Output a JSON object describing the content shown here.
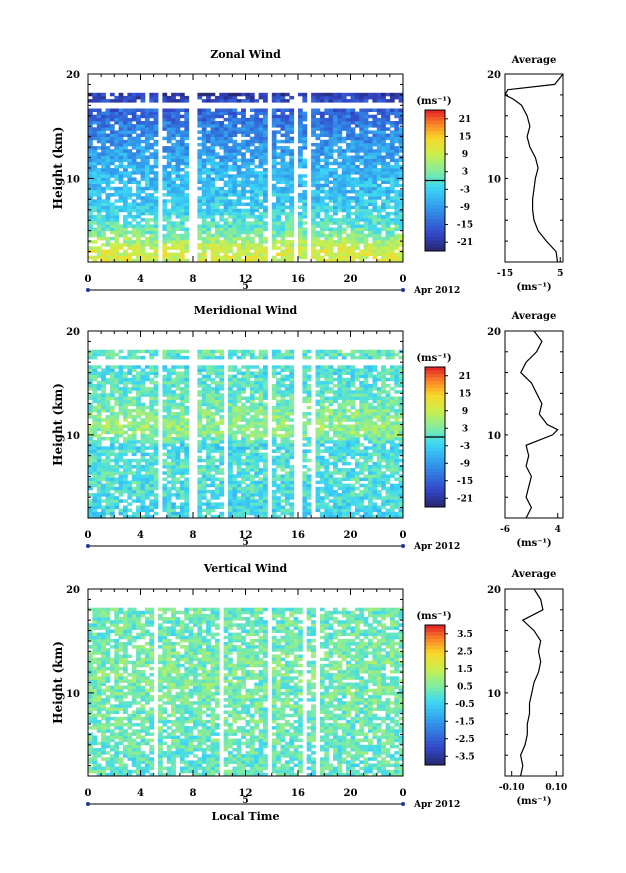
{
  "chart_data": [
    {
      "type": "heatmap",
      "title": "Zonal Wind",
      "ylabel": "Height (km)",
      "unit": "(ms⁻¹)",
      "xlim": [
        0,
        24
      ],
      "ylim": [
        2,
        20
      ],
      "x_ticks": [
        "0",
        "4",
        "8",
        "12",
        "16",
        "20",
        "0"
      ],
      "y_ticks": [
        "20",
        "10"
      ],
      "day_label": "5",
      "date_label": "Apr 2012",
      "colorbar": {
        "min": -24,
        "max": 24,
        "ticks": [
          "21",
          "15",
          "9",
          "3",
          "-3",
          "-9",
          "-15",
          "-21"
        ],
        "zero_marker": true
      },
      "gaps_hours": [
        5.6,
        8.0,
        13.8,
        15.9,
        16.9
      ],
      "profile_by_height": [
        [
          3,
          10
        ],
        [
          5,
          2
        ],
        [
          7,
          -3
        ],
        [
          9,
          -5
        ],
        [
          11,
          -6
        ],
        [
          13,
          -9
        ],
        [
          15,
          -12
        ],
        [
          17,
          -16
        ],
        [
          18,
          -20
        ]
      ],
      "values_scale": 24,
      "average": {
        "title": "Average",
        "xlabel": "(ms⁻¹)",
        "xlim": [
          -15,
          6
        ],
        "x_ticks": [
          "-15",
          "5"
        ],
        "y_ticks": [
          "20",
          "10"
        ],
        "heights": [
          2,
          3,
          4,
          5,
          6,
          7,
          8,
          9,
          10,
          11,
          12,
          13,
          14,
          15,
          16,
          17,
          17.6,
          18,
          18.5,
          19,
          20
        ],
        "values": [
          4,
          3.5,
          0,
          -3,
          -4.5,
          -5,
          -5,
          -4.5,
          -4,
          -3,
          -4,
          -6,
          -7,
          -6,
          -7,
          -9,
          -12,
          -15,
          -14,
          3,
          6
        ]
      }
    },
    {
      "type": "heatmap",
      "title": "Meridional Wind",
      "ylabel": "Height (km)",
      "unit": "(ms⁻¹)",
      "xlim": [
        0,
        24
      ],
      "ylim": [
        2,
        20
      ],
      "x_ticks": [
        "0",
        "4",
        "8",
        "12",
        "16",
        "20",
        "0"
      ],
      "y_ticks": [
        "20",
        "10"
      ],
      "day_label": "5",
      "date_label": "Apr 2012",
      "colorbar": {
        "min": -24,
        "max": 24,
        "ticks": [
          "21",
          "15",
          "9",
          "3",
          "-3",
          "-9",
          "-15",
          "-21"
        ],
        "zero_marker": true
      },
      "gaps_hours": [
        5.6,
        8.0,
        10.4,
        13.8,
        16.0,
        17.1
      ],
      "profile_by_height": [
        [
          3,
          -2
        ],
        [
          5,
          -1
        ],
        [
          7,
          0
        ],
        [
          9,
          -2
        ],
        [
          10,
          4
        ],
        [
          11,
          5
        ],
        [
          13,
          2
        ],
        [
          15,
          0
        ],
        [
          17,
          -1
        ],
        [
          18,
          1
        ]
      ],
      "values_scale": 24,
      "average": {
        "title": "Average",
        "xlabel": "(ms⁻¹)",
        "xlim": [
          -6,
          5
        ],
        "x_ticks": [
          "-6",
          "4"
        ],
        "y_ticks": [
          "20",
          "10"
        ],
        "heights": [
          2,
          3,
          4,
          5,
          6,
          7,
          8,
          9,
          10,
          10.5,
          11,
          12,
          13,
          14,
          15,
          16,
          17,
          18,
          19,
          20
        ],
        "values": [
          -2,
          -1,
          -2,
          -1.5,
          -1,
          -2,
          -1.5,
          -2,
          3,
          4,
          2,
          0.5,
          1,
          0,
          -1,
          -3,
          -2,
          0,
          1,
          -0.5
        ]
      }
    },
    {
      "type": "heatmap",
      "title": "Vertical Wind",
      "ylabel": "Height (km)",
      "xlabel": "Local Time",
      "unit": "(ms⁻¹)",
      "xlim": [
        0,
        24
      ],
      "ylim": [
        2,
        20
      ],
      "x_ticks": [
        "0",
        "4",
        "8",
        "12",
        "16",
        "20",
        "0"
      ],
      "y_ticks": [
        "20",
        "10"
      ],
      "day_label": "5",
      "date_label": "Apr 2012",
      "colorbar": {
        "min": -4,
        "max": 4,
        "ticks": [
          "3.5",
          "2.5",
          "1.5",
          "0.5",
          "-0.5",
          "-1.5",
          "-2.5",
          "-3.5"
        ],
        "zero_marker": false
      },
      "gaps_hours": [
        5.3,
        10.2,
        13.8,
        16.4,
        17.4
      ],
      "profile_by_height": [
        [
          3,
          0.1
        ],
        [
          7,
          0.3
        ],
        [
          10,
          0.4
        ],
        [
          13,
          0.5
        ],
        [
          16,
          0.2
        ],
        [
          18,
          0.3
        ]
      ],
      "values_scale": 4,
      "average": {
        "title": "Average",
        "xlabel": "(ms⁻¹)",
        "xlim": [
          -0.13,
          0.13
        ],
        "x_ticks": [
          "-0.10",
          "0.10"
        ],
        "y_ticks": [
          "20",
          "10"
        ],
        "heights": [
          2,
          3,
          4,
          5,
          6,
          7,
          8,
          9,
          10,
          11,
          12,
          13,
          14,
          15,
          16,
          17,
          18,
          19,
          20
        ],
        "values": [
          -0.06,
          -0.05,
          -0.06,
          -0.04,
          -0.03,
          -0.03,
          -0.02,
          -0.02,
          -0.01,
          0.0,
          0.02,
          0.03,
          0.02,
          0.03,
          0.0,
          -0.05,
          0.04,
          0.03,
          0.0
        ]
      }
    }
  ]
}
